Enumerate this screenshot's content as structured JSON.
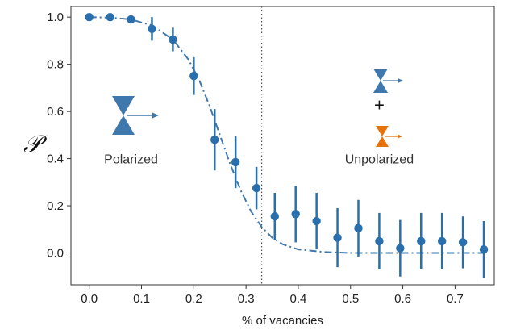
{
  "chart_data": {
    "type": "scatter",
    "title": "",
    "xlabel": "% of vacancies",
    "ylabel": "𝒫",
    "xlim": [
      -0.035,
      0.775
    ],
    "ylim": [
      -0.135,
      1.045
    ],
    "xticks": [
      0.0,
      0.1,
      0.2,
      0.3,
      0.4,
      0.5,
      0.6,
      0.7
    ],
    "xtick_labels": [
      "0.0",
      "0.1",
      "0.2",
      "0.3",
      "0.4",
      "0.5",
      "0.6",
      "0.7"
    ],
    "yticks": [
      0.0,
      0.2,
      0.4,
      0.6,
      0.8,
      1.0
    ],
    "ytick_labels": [
      "0.0",
      "0.2",
      "0.4",
      "0.6",
      "0.8",
      "1.0"
    ],
    "grid": false,
    "colors": {
      "marker": "#2a6fad",
      "fit": "#3f78ad",
      "divider": "#555555",
      "unpolarized_accent": "#e8720c",
      "icon_blue": "#3f78ad"
    },
    "series": [
      {
        "type": "scatter_errorbar",
        "x": [
          0.0,
          0.04,
          0.08,
          0.12,
          0.16,
          0.2,
          0.24,
          0.28,
          0.32,
          0.355,
          0.395,
          0.435,
          0.475,
          0.515,
          0.555,
          0.595,
          0.635,
          0.675,
          0.715,
          0.755
        ],
        "y": [
          1.0,
          1.0,
          0.99,
          0.95,
          0.905,
          0.75,
          0.48,
          0.385,
          0.275,
          0.155,
          0.165,
          0.135,
          0.065,
          0.105,
          0.05,
          0.02,
          0.05,
          0.05,
          0.045,
          0.015
        ],
        "err": [
          0.0,
          0.0,
          0.0,
          0.05,
          0.05,
          0.08,
          0.13,
          0.11,
          0.09,
          0.1,
          0.12,
          0.12,
          0.125,
          0.12,
          0.12,
          0.12,
          0.12,
          0.12,
          0.11,
          0.12
        ]
      },
      {
        "type": "line",
        "style": "dash-dot",
        "x": [
          0.0,
          0.04,
          0.08,
          0.12,
          0.16,
          0.19,
          0.21,
          0.23,
          0.25,
          0.27,
          0.29,
          0.31,
          0.33,
          0.35,
          0.37,
          0.4,
          0.45,
          0.5,
          0.55,
          0.6,
          0.65,
          0.7,
          0.755
        ],
        "y": [
          1.0,
          0.998,
          0.99,
          0.965,
          0.905,
          0.82,
          0.735,
          0.625,
          0.5,
          0.375,
          0.265,
          0.175,
          0.11,
          0.065,
          0.037,
          0.015,
          0.004,
          0.0,
          0.0,
          0.0,
          0.0,
          0.0,
          0.0
        ]
      }
    ],
    "vline": {
      "x": 0.33,
      "style": "dotted"
    },
    "annotations": [
      {
        "text": "Polarized",
        "x": 0.08,
        "y": 0.4
      },
      {
        "text": "Unpolarized",
        "x": 0.555,
        "y": 0.4
      },
      {
        "text": "+",
        "x": 0.555,
        "y": 0.63
      }
    ]
  }
}
